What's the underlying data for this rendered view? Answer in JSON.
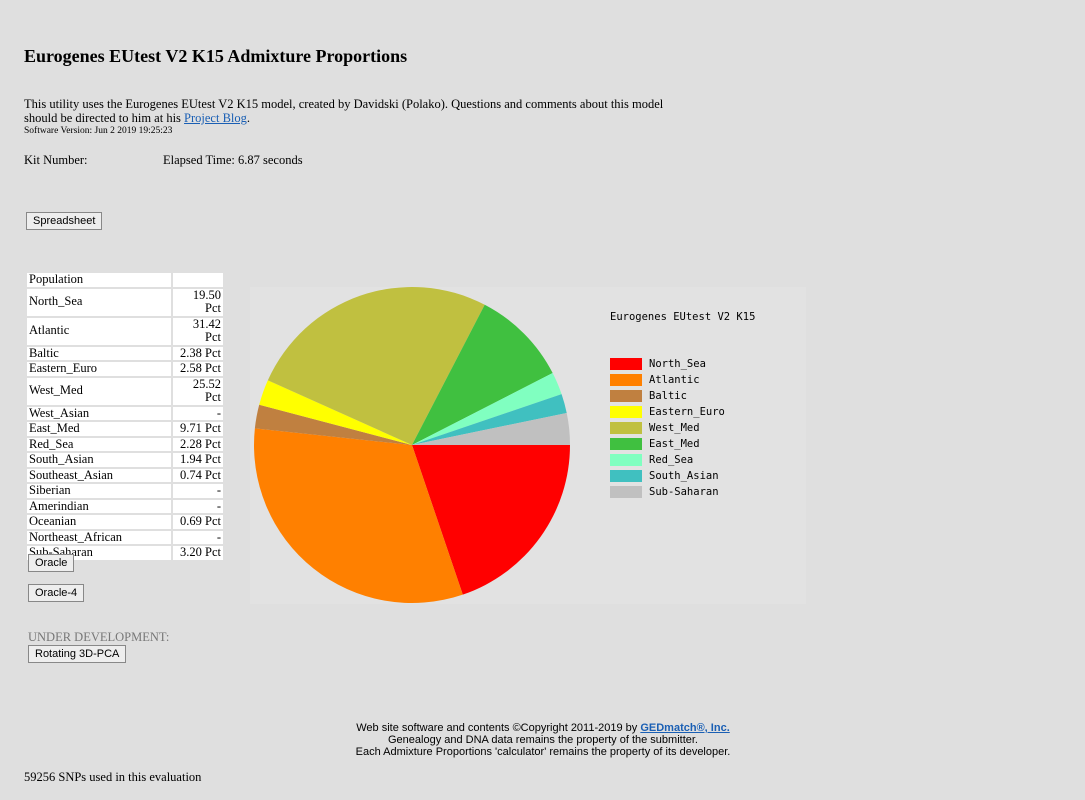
{
  "header": {
    "title": "Eurogenes EUtest V2 K15 Admixture Proportions",
    "intro": "This utility uses the Eurogenes EUtest V2 K15 model, created by Davidski (Polako). Questions and comments about this model should be directed to him at his ",
    "intro_link": "Project Blog",
    "intro_end": ".",
    "version": "Software Version: Jun 2 2019 19:25:23",
    "kit_label": "Kit Number:",
    "elapsed": "Elapsed Time: 6.87 seconds"
  },
  "buttons": {
    "spreadsheet": "Spreadsheet",
    "oracle": "Oracle",
    "oracle4": "Oracle-4",
    "pca": "Rotating 3D-PCA"
  },
  "table": {
    "header": "Population",
    "rows": [
      [
        "North_Sea",
        "19.50 Pct"
      ],
      [
        "Atlantic",
        "31.42 Pct"
      ],
      [
        "Baltic",
        "2.38 Pct"
      ],
      [
        "Eastern_Euro",
        "2.58 Pct"
      ],
      [
        "West_Med",
        "25.52 Pct"
      ],
      [
        "West_Asian",
        "-"
      ],
      [
        "East_Med",
        "9.71 Pct"
      ],
      [
        "Red_Sea",
        "2.28 Pct"
      ],
      [
        "South_Asian",
        "1.94 Pct"
      ],
      [
        "Southeast_Asian",
        "0.74 Pct"
      ],
      [
        "Siberian",
        "-"
      ],
      [
        "Amerindian",
        "-"
      ],
      [
        "Oceanian",
        "0.69 Pct"
      ],
      [
        "Northeast_African",
        "-"
      ],
      [
        "Sub-Saharan",
        "3.20 Pct"
      ]
    ]
  },
  "dev": "UNDER DEVELOPMENT:",
  "footer": {
    "line1": "Web site software and contents ©Copyright 2011-2019 by ",
    "link": "GEDmatch®, Inc.",
    "line2": "Genealogy and DNA data remains the property of the submitter.",
    "line3": "Each Admixture Proportions 'calculator' remains the property of its developer."
  },
  "snps": "59256 SNPs used in this evaluation",
  "chart_data": {
    "type": "pie",
    "title": "Eurogenes EUtest V2 K15",
    "categories": [
      "North_Sea",
      "Atlantic",
      "Baltic",
      "Eastern_Euro",
      "West_Med",
      "East_Med",
      "Red_Sea",
      "South_Asian",
      "Sub-Saharan"
    ],
    "values": [
      19.5,
      31.42,
      2.38,
      2.58,
      25.52,
      9.71,
      2.28,
      1.94,
      3.2
    ],
    "colors": [
      "#ff0000",
      "#ff8000",
      "#c08040",
      "#ffff00",
      "#c0c040",
      "#40c040",
      "#80ffc0",
      "#40c0c0",
      "#c0c0c0"
    ]
  }
}
